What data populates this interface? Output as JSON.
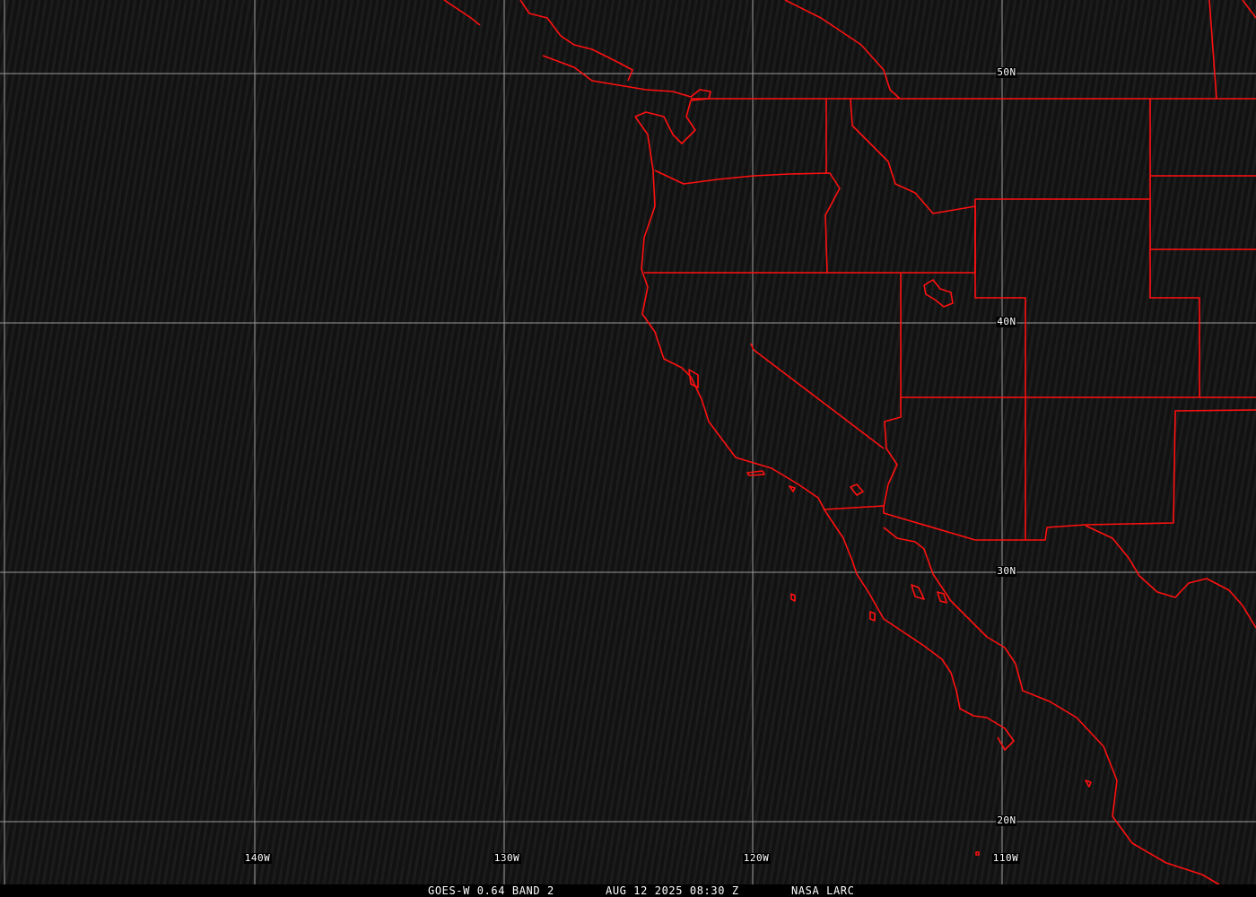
{
  "map": {
    "projection": "equirectangular",
    "grid_color": "#a0a0a0",
    "border_color": "#ff0000",
    "longitude_labels": [
      "140W",
      "130W",
      "120W",
      "110W"
    ],
    "latitude_labels": [
      "50N",
      "40N",
      "30N",
      "20N"
    ]
  },
  "caption": {
    "satellite": "GOES-W 0.64 BAND 2",
    "datetime": "AUG 12 2025 08:30 Z",
    "source": "NASA LARC"
  }
}
